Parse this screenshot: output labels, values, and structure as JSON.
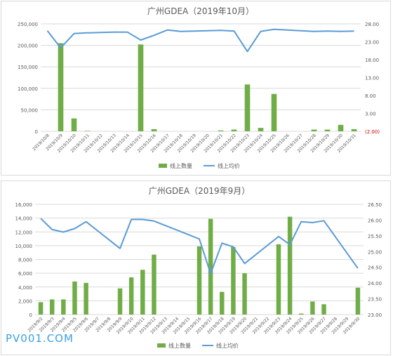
{
  "watermark": "PV001.COM",
  "colors": {
    "bar": "#70ad47",
    "line": "#5b9bd5",
    "grid": "#d9d9d9",
    "text": "#595959"
  },
  "chart_data": [
    {
      "type": "bar",
      "title": "广州GDEA（2019年10月）",
      "categories": [
        "2019/10/8",
        "2019/10/9",
        "2019/10/10",
        "2019/10/11",
        "2019/10/12",
        "2019/10/13",
        "2019/10/14",
        "2019/10/15",
        "2019/10/16",
        "2019/10/17",
        "2019/10/18",
        "2019/10/19",
        "2019/10/20",
        "2019/10/21",
        "2019/10/22",
        "2019/10/23",
        "2019/10/24",
        "2019/10/25",
        "2019/10/26",
        "2019/10/27",
        "2019/10/28",
        "2019/10/29",
        "2019/10/30",
        "2019/10/31"
      ],
      "left_ticks": [
        "0",
        "50,000",
        "100,000",
        "150,000",
        "200,000",
        "250,000"
      ],
      "right_ticks": [
        "(2.00)",
        "3.00",
        "8.00",
        "13.00",
        "18.00",
        "23.00",
        "28.00"
      ],
      "ylim": [
        0,
        250000
      ],
      "y2lim": [
        -2,
        28
      ],
      "series": [
        {
          "name": "线上数量",
          "kind": "bar",
          "axis": "left",
          "values": [
            null,
            205000,
            30000,
            1000,
            null,
            null,
            null,
            202000,
            5000,
            null,
            null,
            null,
            null,
            2000,
            4000,
            109000,
            8000,
            87000,
            null,
            null,
            4000,
            4000,
            15000,
            5000
          ]
        },
        {
          "name": "线上均价",
          "kind": "line",
          "axis": "right",
          "values": [
            26.1,
            21.3,
            25.3,
            25.5,
            25.6,
            25.7,
            25.7,
            23.5,
            24.8,
            26.3,
            25.9,
            26.0,
            26.1,
            26.2,
            26.0,
            20.3,
            25.9,
            26.5,
            26.3,
            26.1,
            25.9,
            26.0,
            25.9,
            26.0
          ]
        }
      ],
      "legend_position": "bottom"
    },
    {
      "type": "bar",
      "title": "广州GDEA（2019年9月）",
      "categories": [
        "2019/9/2",
        "2019/9/3",
        "2019/9/4",
        "2019/9/5",
        "2019/9/6",
        "2019/9/7",
        "2019/9/8",
        "2019/9/9",
        "2019/9/10",
        "2019/9/11",
        "2019/9/12",
        "2019/9/13",
        "2019/9/14",
        "2019/9/15",
        "2019/9/16",
        "2019/9/17",
        "2019/9/18",
        "2019/9/19",
        "2019/9/20",
        "2019/9/21",
        "2019/9/22",
        "2019/9/23",
        "2019/9/24",
        "2019/9/25",
        "2019/9/26",
        "2019/9/27",
        "2019/9/28",
        "2019/9/29",
        "2019/9/30"
      ],
      "left_ticks": [
        "0",
        "2,000",
        "4,000",
        "6,000",
        "8,000",
        "10,000",
        "12,000",
        "14,000",
        "16,000"
      ],
      "right_ticks": [
        "23.00",
        "23.50",
        "24.00",
        "24.50",
        "25.00",
        "25.50",
        "26.00",
        "26.50"
      ],
      "ylim": [
        0,
        16000
      ],
      "y2lim": [
        23,
        26.5
      ],
      "series": [
        {
          "name": "线上数量",
          "kind": "bar",
          "axis": "left",
          "values": [
            1800,
            2200,
            2200,
            4800,
            4600,
            null,
            null,
            3800,
            5400,
            6500,
            8700,
            null,
            null,
            null,
            9900,
            13900,
            3300,
            9800,
            6000,
            null,
            null,
            10200,
            14200,
            150,
            1900,
            1500,
            null,
            null,
            3900
          ]
        },
        {
          "name": "线上均价",
          "kind": "line",
          "axis": "right",
          "values": [
            26.05,
            25.7,
            25.62,
            25.73,
            25.95,
            null,
            null,
            25.1,
            26.02,
            26.02,
            25.97,
            null,
            null,
            null,
            25.4,
            24.3,
            25.27,
            25.15,
            24.62,
            null,
            null,
            25.48,
            25.22,
            25.95,
            25.92,
            25.98,
            null,
            null,
            24.47
          ]
        }
      ],
      "legend_position": "bottom"
    }
  ]
}
